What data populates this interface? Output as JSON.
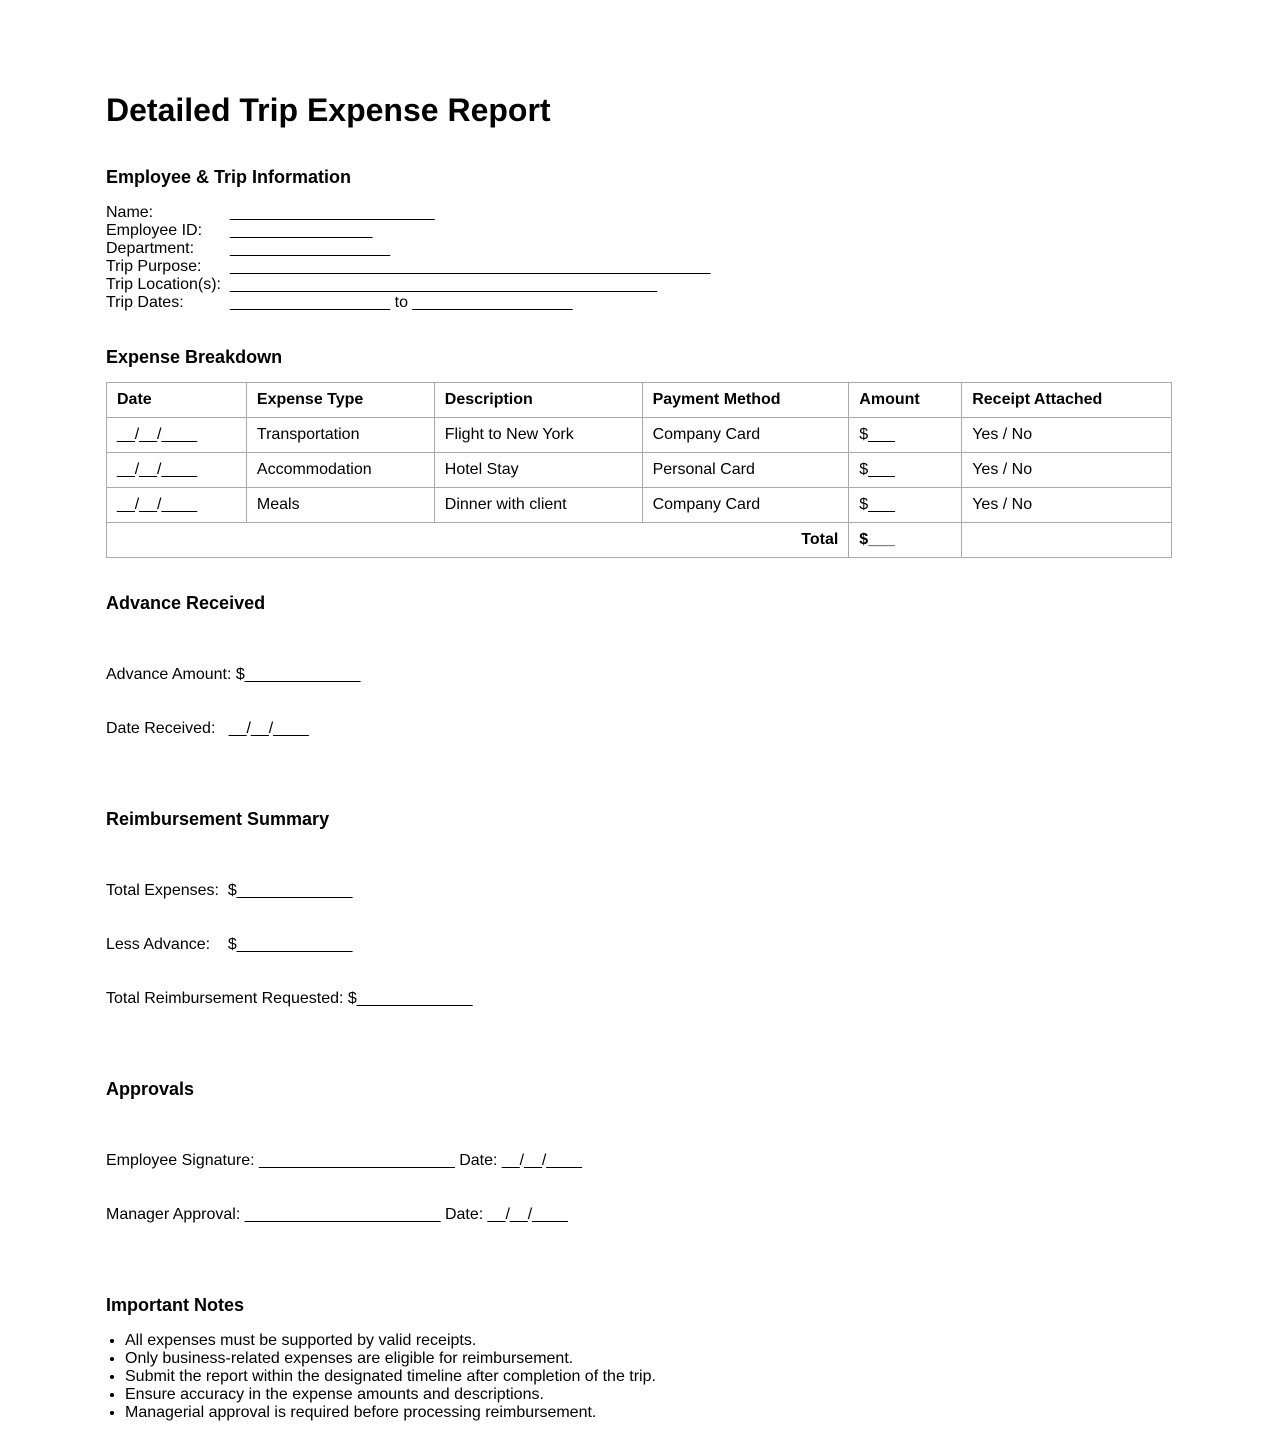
{
  "title": "Detailed Trip Expense Report",
  "employee_info": {
    "heading": "Employee & Trip Information",
    "fields": [
      {
        "label": "Name:",
        "value": "_______________________"
      },
      {
        "label": "Employee ID:",
        "value": "________________"
      },
      {
        "label": "Department:",
        "value": "__________________"
      },
      {
        "label": "Trip Purpose:",
        "value": "______________________________________________________"
      },
      {
        "label": "Trip Location(s):",
        "value": "________________________________________________"
      },
      {
        "label": "Trip Dates:",
        "value": "__________________ to __________________"
      }
    ]
  },
  "expenses": {
    "heading": "Expense Breakdown",
    "columns": [
      "Date",
      "Expense Type",
      "Description",
      "Payment Method",
      "Amount",
      "Receipt Attached"
    ],
    "rows": [
      [
        "__/__/____",
        "Transportation",
        "Flight to New York",
        "Company Card",
        "$___",
        "Yes / No"
      ],
      [
        "__/__/____",
        "Accommodation",
        "Hotel Stay",
        "Personal Card",
        "$___",
        "Yes / No"
      ],
      [
        "__/__/____",
        "Meals",
        "Dinner with client",
        "Company Card",
        "$___",
        "Yes / No"
      ]
    ],
    "total_label": "Total",
    "total_value": "$___"
  },
  "advance": {
    "heading": "Advance Received",
    "lines": [
      "Advance Amount: $_____________",
      "Date Received:   __/__/____"
    ]
  },
  "summary": {
    "heading": "Reimbursement Summary",
    "lines": [
      "Total Expenses:  $_____________",
      "Less Advance:    $_____________",
      "Total Reimbursement Requested: $_____________"
    ]
  },
  "approvals": {
    "heading": "Approvals",
    "lines": [
      "Employee Signature: ______________________ Date: __/__/____",
      "Manager Approval: ______________________ Date: __/__/____"
    ]
  },
  "notes": {
    "heading": "Important Notes",
    "items": [
      "All expenses must be supported by valid receipts.",
      "Only business-related expenses are eligible for reimbursement.",
      "Submit the report within the designated timeline after completion of the trip.",
      "Ensure accuracy in the expense amounts and descriptions.",
      "Managerial approval is required before processing reimbursement."
    ]
  }
}
